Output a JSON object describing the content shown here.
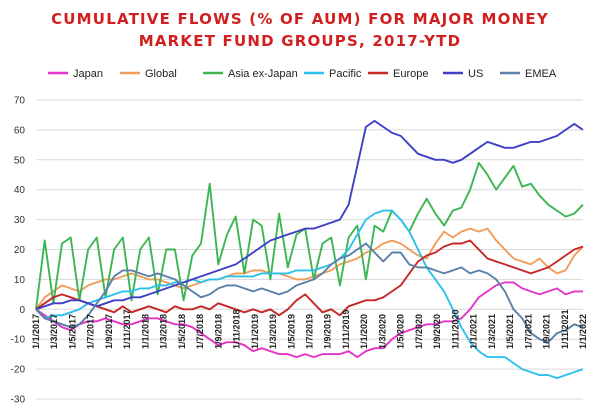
{
  "chart_data": {
    "type": "line",
    "title_line1": "CUMULATIVE FLOWS (% OF AUM) FOR MAJOR MONEY",
    "title_line2": "MARKET FUND GROUPS, 2017-YTD",
    "xlabel": "",
    "ylabel": "",
    "ylim": [
      -30,
      70
    ],
    "yticks": [
      -30,
      -20,
      -10,
      0,
      10,
      20,
      30,
      40,
      50,
      60,
      70
    ],
    "grid": "horizontal",
    "legend_position": "top",
    "x_tick_labels": [
      "1/1/2017",
      "1/3/2017",
      "1/5/2017",
      "1/7/2017",
      "1/9/2017",
      "1/11/2017",
      "1/1/2018",
      "1/3/2018",
      "1/5/2018",
      "1/7/2018",
      "1/9/2018",
      "1/11/2018",
      "1/1/2019",
      "1/3/2019",
      "1/5/2019",
      "1/7/2019",
      "1/9/2019",
      "1/11/2019",
      "1/1/2020",
      "1/3/2020",
      "1/5/2020",
      "1/7/2020",
      "1/9/2020",
      "1/11/2020",
      "1/1/2021",
      "1/3/2021",
      "1/5/2021",
      "1/7/2021",
      "1/9/2021",
      "1/11/2021",
      "1/1/2022"
    ],
    "x_period_count": 64,
    "series": [
      {
        "name": "Japan",
        "color": "#e535c8",
        "values": [
          0,
          -2,
          -4,
          -6,
          -7,
          -5,
          -4,
          -4,
          -3,
          -4,
          -5,
          -5,
          -4,
          -3,
          -3,
          -4,
          -5,
          -5,
          -6,
          -8,
          -10,
          -12,
          -11,
          -11,
          -12,
          -14,
          -13,
          -14,
          -15,
          -15,
          -16,
          -15,
          -16,
          -15,
          -15,
          -15,
          -14,
          -16,
          -14,
          -13,
          -13,
          -10,
          -8,
          -7,
          -6,
          -5,
          -5,
          -4,
          -4,
          -3,
          0,
          4,
          6,
          8,
          9,
          9,
          7,
          6,
          5,
          6,
          7,
          5,
          6,
          6
        ]
      },
      {
        "name": "Global",
        "color": "#f39b58",
        "values": [
          0,
          4,
          6,
          8,
          7,
          6,
          8,
          9,
          10,
          10,
          11,
          12,
          11,
          10,
          10,
          9,
          8,
          7,
          8,
          9,
          10,
          10,
          11,
          12,
          12,
          13,
          13,
          12,
          12,
          11,
          10,
          10,
          11,
          12,
          13,
          15,
          16,
          17,
          19,
          20,
          22,
          23,
          22,
          20,
          18,
          17,
          22,
          26,
          24,
          26,
          27,
          26,
          27,
          23,
          20,
          17,
          16,
          15,
          17,
          14,
          12,
          13,
          18,
          21
        ]
      },
      {
        "name": "Asia ex-Japan",
        "color": "#3db553",
        "values": [
          0,
          23,
          2,
          22,
          24,
          3,
          20,
          24,
          4,
          20,
          24,
          3,
          20,
          24,
          5,
          20,
          20,
          3,
          18,
          22,
          42,
          15,
          25,
          31,
          12,
          30,
          28,
          10,
          32,
          14,
          25,
          27,
          10,
          22,
          24,
          8,
          24,
          28,
          10,
          28,
          26,
          33,
          30,
          26,
          32,
          37,
          32,
          28,
          33,
          34,
          40,
          49,
          45,
          40,
          44,
          48,
          41,
          42,
          38,
          35,
          33,
          31,
          32,
          35
        ]
      },
      {
        "name": "Pacific",
        "color": "#2cc0ee",
        "values": [
          0,
          -3,
          -2,
          -2,
          -1,
          0,
          2,
          3,
          4,
          5,
          6,
          6,
          7,
          7,
          8,
          8,
          9,
          9,
          10,
          9,
          10,
          10,
          11,
          11,
          11,
          11,
          12,
          12,
          12,
          12,
          13,
          13,
          13,
          14,
          15,
          17,
          20,
          25,
          30,
          32,
          33,
          33,
          30,
          26,
          20,
          14,
          10,
          6,
          0,
          -6,
          -11,
          -14,
          -16,
          -16,
          -16,
          -18,
          -20,
          -21,
          -22,
          -22,
          -23,
          -22,
          -21,
          -20
        ]
      },
      {
        "name": "Europe",
        "color": "#c62828",
        "values": [
          0,
          2,
          4,
          5,
          4,
          3,
          2,
          1,
          0,
          -1,
          1,
          -1,
          0,
          1,
          0,
          -1,
          1,
          0,
          0,
          1,
          0,
          2,
          1,
          0,
          -1,
          0,
          -1,
          0,
          -2,
          0,
          3,
          5,
          2,
          -1,
          0,
          -2,
          1,
          2,
          3,
          3,
          4,
          6,
          8,
          12,
          16,
          18,
          19,
          21,
          22,
          22,
          23,
          20,
          17,
          16,
          15,
          14,
          13,
          12,
          13,
          14,
          16,
          18,
          20,
          21
        ]
      },
      {
        "name": "US",
        "color": "#3f3fc8",
        "values": [
          0,
          1,
          2,
          2,
          3,
          3,
          2,
          1,
          2,
          3,
          3,
          4,
          4,
          5,
          6,
          7,
          8,
          9,
          10,
          11,
          12,
          13,
          14,
          15,
          17,
          19,
          21,
          23,
          24,
          25,
          26,
          27,
          27,
          28,
          29,
          30,
          35,
          48,
          61,
          63,
          61,
          59,
          58,
          55,
          52,
          51,
          50,
          50,
          49,
          50,
          52,
          54,
          56,
          55,
          54,
          54,
          55,
          56,
          56,
          57,
          58,
          60,
          62,
          60
        ]
      },
      {
        "name": "EMEA",
        "color": "#5a7fa8",
        "values": [
          0,
          -3,
          -4,
          -5,
          -6,
          -5,
          -2,
          2,
          6,
          11,
          13,
          13,
          12,
          11,
          12,
          11,
          10,
          8,
          6,
          4,
          5,
          7,
          8,
          8,
          7,
          6,
          7,
          6,
          5,
          6,
          8,
          9,
          10,
          12,
          15,
          17,
          18,
          20,
          22,
          19,
          16,
          19,
          19,
          15,
          14,
          14,
          13,
          12,
          13,
          14,
          12,
          13,
          12,
          10,
          6,
          0,
          -3,
          -8,
          -10,
          -11,
          -8,
          -7,
          -5,
          -6
        ]
      }
    ]
  }
}
